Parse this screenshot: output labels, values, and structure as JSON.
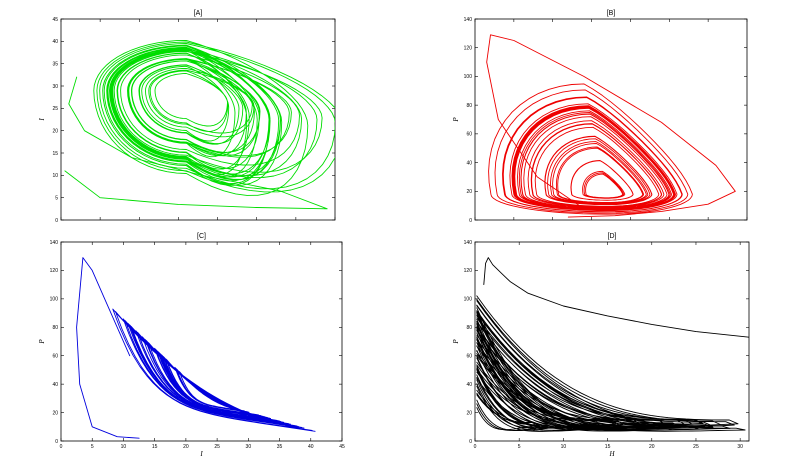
{
  "chart_data": [
    {
      "type": "line",
      "panel": "A",
      "title": "[A]",
      "xlabel": "",
      "ylabel": "I",
      "xlim": [
        0,
        35
      ],
      "ylim": [
        0,
        45
      ],
      "xticks": [],
      "yticks": [
        0,
        5,
        10,
        15,
        20,
        25,
        30,
        35,
        40,
        45
      ],
      "color": "#00dd00",
      "attractor": {
        "center": [
          16,
          29
        ],
        "x_span": [
          4,
          34
        ],
        "y_span": [
          2,
          41
        ]
      },
      "series": [
        {
          "x": [
            0.5,
            5,
            15,
            25,
            34,
            28,
            18,
            9,
            3,
            1,
            2
          ],
          "y": [
            11,
            5,
            3.5,
            2.8,
            2.5,
            6.5,
            10,
            14,
            20,
            26,
            32
          ]
        }
      ]
    },
    {
      "type": "line",
      "panel": "B",
      "title": "[B]",
      "xlabel": "",
      "ylabel": "P",
      "xlim": [
        0,
        35
      ],
      "ylim": [
        0,
        140
      ],
      "xticks": [],
      "yticks": [
        0,
        20,
        40,
        60,
        80,
        100,
        120,
        140
      ],
      "color": "#ee0000",
      "attractor": {
        "center": [
          17,
          18
        ],
        "x_span": [
          2,
          28
        ],
        "y_span": [
          4,
          95
        ]
      },
      "series": [
        {
          "x": [
            12,
            18,
            24,
            30,
            33.5,
            31,
            24,
            14,
            5,
            2,
            1.5,
            3,
            8,
            14
          ],
          "y": [
            2,
            3,
            6,
            11,
            20,
            38,
            68,
            100,
            125,
            129,
            110,
            70,
            30,
            8
          ]
        }
      ]
    },
    {
      "type": "line",
      "panel": "C",
      "title": "[C]",
      "xlabel": "I",
      "ylabel": "P",
      "xlim": [
        0,
        45
      ],
      "ylim": [
        0,
        140
      ],
      "xticks": [
        0,
        5,
        10,
        15,
        20,
        25,
        30,
        35,
        40,
        45
      ],
      "yticks": [
        0,
        20,
        40,
        60,
        80,
        100,
        120,
        140
      ],
      "color": "#0000dd",
      "attractor": {
        "center": [
          24,
          28
        ],
        "x_span": [
          8,
          41
        ],
        "y_span": [
          4,
          94
        ]
      },
      "series": [
        {
          "x": [
            12.5,
            9,
            5,
            3,
            2.5,
            3.5,
            5,
            7,
            9,
            11
          ],
          "y": [
            2,
            3,
            10,
            40,
            80,
            129,
            120,
            100,
            80,
            60
          ]
        }
      ]
    },
    {
      "type": "line",
      "panel": "D",
      "title": "[D]",
      "xlabel": "H",
      "ylabel": "P",
      "xlim": [
        0,
        31
      ],
      "ylim": [
        0,
        140
      ],
      "xticks": [
        0,
        5,
        10,
        15,
        20,
        25,
        30
      ],
      "yticks": [
        0,
        20,
        40,
        60,
        80,
        100,
        120,
        140
      ],
      "color": "#000000",
      "attractor": {
        "center": [
          4,
          18
        ],
        "x_span": [
          0.2,
          31
        ],
        "y_span": [
          4,
          95
        ]
      },
      "series": [
        {
          "x": [
            31,
            25,
            20,
            15,
            10,
            6,
            4,
            3,
            2,
            1.5,
            1.2,
            1
          ],
          "y": [
            73,
            77,
            82,
            88,
            95,
            104,
            112,
            118,
            124,
            129,
            125,
            110
          ]
        }
      ]
    }
  ]
}
